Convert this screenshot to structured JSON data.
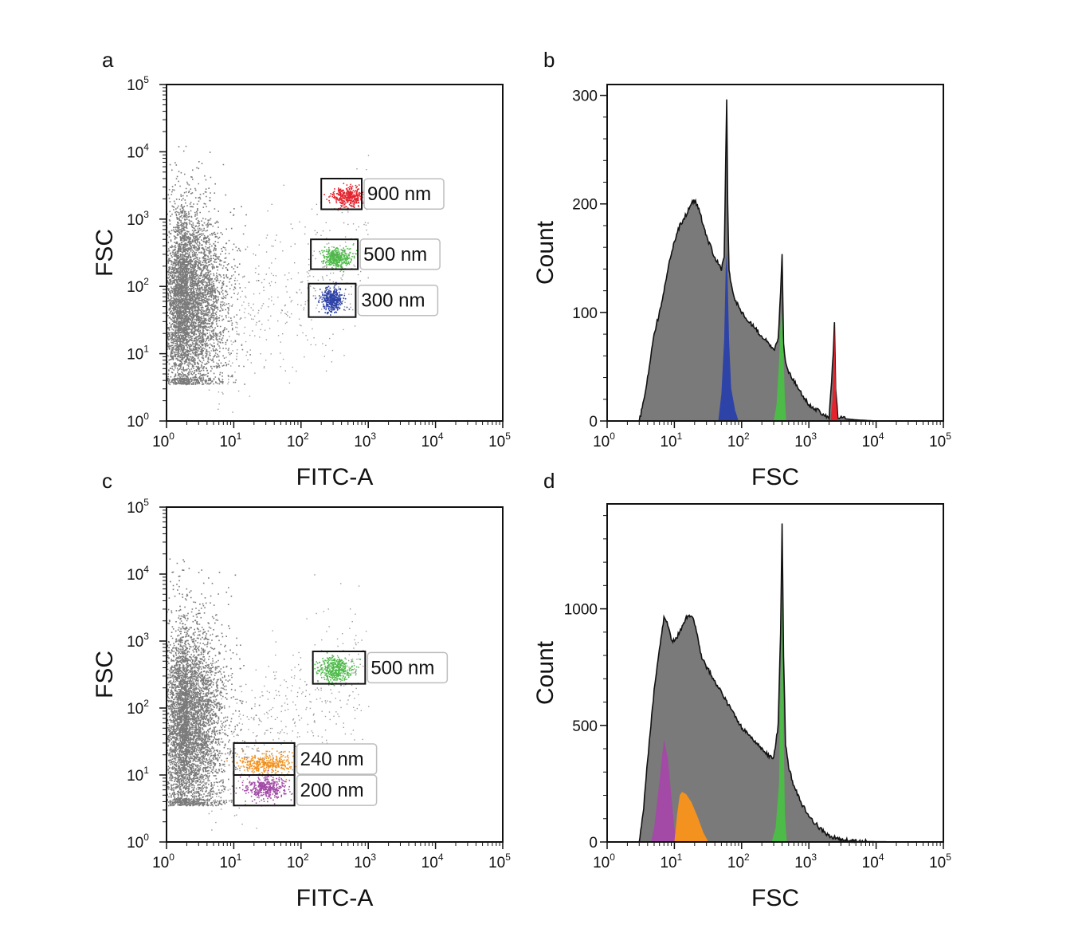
{
  "colors": {
    "background": "#ffffff",
    "bulk": "#7a7a7a",
    "axis": "#111111",
    "red": "#e3232e",
    "green": "#4dbb48",
    "blue": "#2e43a8",
    "orange": "#f3921f",
    "purple": "#a24aa6"
  },
  "chart_data": [
    {
      "panel": "a",
      "type": "scatter",
      "xlabel": "FITC-A",
      "ylabel": "FSC",
      "xscale": "log",
      "yscale": "log",
      "xlim": [
        1,
        100000
      ],
      "ylim": [
        1,
        100000
      ],
      "x_tick_labels": [
        {
          "base": "10",
          "exp": "0"
        },
        {
          "base": "10",
          "exp": "1"
        },
        {
          "base": "10",
          "exp": "2"
        },
        {
          "base": "10",
          "exp": "3"
        },
        {
          "base": "10",
          "exp": "4"
        },
        {
          "base": "10",
          "exp": "5"
        }
      ],
      "y_tick_labels": [
        {
          "base": "10",
          "exp": "0"
        },
        {
          "base": "10",
          "exp": "1"
        },
        {
          "base": "10",
          "exp": "2"
        },
        {
          "base": "10",
          "exp": "3"
        },
        {
          "base": "10",
          "exp": "4"
        },
        {
          "base": "10",
          "exp": "5"
        }
      ],
      "populations": [
        {
          "color": "bulk",
          "x_center": 2,
          "y_center": 60,
          "log_spread_x": 0.28,
          "log_spread_y": 0.7
        },
        {
          "color": "red",
          "x_center": 500,
          "y_center": 2200,
          "log_spread_x": 0.12,
          "log_spread_y": 0.07
        },
        {
          "color": "green",
          "x_center": 340,
          "y_center": 270,
          "log_spread_x": 0.1,
          "log_spread_y": 0.07
        },
        {
          "color": "blue",
          "x_center": 280,
          "y_center": 65,
          "log_spread_x": 0.08,
          "log_spread_y": 0.09
        }
      ],
      "gates": [
        {
          "label": "900 nm",
          "x_range": [
            200,
            800
          ],
          "y_range": [
            1400,
            4000
          ]
        },
        {
          "label": "500 nm",
          "x_range": [
            140,
            700
          ],
          "y_range": [
            180,
            500
          ]
        },
        {
          "label": "300 nm",
          "x_range": [
            130,
            650
          ],
          "y_range": [
            35,
            110
          ]
        }
      ]
    },
    {
      "panel": "b",
      "type": "area",
      "xlabel": "FSC",
      "ylabel": "Count",
      "xscale": "log",
      "xlim": [
        1,
        100000
      ],
      "ylim": [
        0,
        310
      ],
      "x_tick_labels": [
        {
          "base": "10",
          "exp": "0"
        },
        {
          "base": "10",
          "exp": "1"
        },
        {
          "base": "10",
          "exp": "2"
        },
        {
          "base": "10",
          "exp": "3"
        },
        {
          "base": "10",
          "exp": "4"
        },
        {
          "base": "10",
          "exp": "5"
        }
      ],
      "y_ticks": [
        0,
        100,
        200,
        300
      ],
      "total_histogram": {
        "x": [
          3,
          3.5,
          4,
          5,
          6,
          7,
          8,
          10,
          12,
          15,
          18,
          20,
          22,
          25,
          30,
          35,
          40,
          45,
          50,
          55,
          58,
          60,
          62,
          65,
          70,
          80,
          100,
          130,
          160,
          200,
          250,
          300,
          350,
          380,
          400,
          420,
          450,
          500,
          700,
          1000,
          1500,
          2000,
          2300,
          2400,
          2500,
          2700,
          3500,
          5000,
          10000,
          100000
        ],
        "y": [
          0,
          18,
          40,
          80,
          100,
          120,
          140,
          165,
          180,
          190,
          202,
          203,
          198,
          188,
          170,
          160,
          150,
          145,
          140,
          150,
          240,
          295,
          200,
          140,
          125,
          112,
          100,
          92,
          85,
          78,
          72,
          65,
          75,
          120,
          152,
          70,
          55,
          45,
          30,
          15,
          8,
          3,
          60,
          90,
          30,
          3,
          2,
          1,
          0,
          0
        ]
      },
      "peaks": [
        {
          "color": "blue",
          "x": [
            45,
            50,
            55,
            58,
            60,
            62,
            65,
            70,
            80,
            90
          ],
          "y": [
            0,
            25,
            75,
            140,
            155,
            130,
            75,
            30,
            10,
            0
          ]
        },
        {
          "color": "green",
          "x": [
            300,
            330,
            360,
            380,
            400,
            420,
            440,
            460
          ],
          "y": [
            0,
            15,
            55,
            90,
            100,
            60,
            20,
            0
          ]
        },
        {
          "color": "red",
          "x": [
            2100,
            2250,
            2350,
            2400,
            2450,
            2550,
            2700
          ],
          "y": [
            0,
            20,
            60,
            88,
            60,
            20,
            0
          ]
        }
      ]
    },
    {
      "panel": "c",
      "type": "scatter",
      "xlabel": "FITC-A",
      "ylabel": "FSC",
      "xscale": "log",
      "yscale": "log",
      "xlim": [
        1,
        100000
      ],
      "ylim": [
        1,
        100000
      ],
      "x_tick_labels": [
        {
          "base": "10",
          "exp": "0"
        },
        {
          "base": "10",
          "exp": "1"
        },
        {
          "base": "10",
          "exp": "2"
        },
        {
          "base": "10",
          "exp": "3"
        },
        {
          "base": "10",
          "exp": "4"
        },
        {
          "base": "10",
          "exp": "5"
        }
      ],
      "y_tick_labels": [
        {
          "base": "10",
          "exp": "0"
        },
        {
          "base": "10",
          "exp": "1"
        },
        {
          "base": "10",
          "exp": "2"
        },
        {
          "base": "10",
          "exp": "3"
        },
        {
          "base": "10",
          "exp": "4"
        },
        {
          "base": "10",
          "exp": "5"
        }
      ],
      "populations": [
        {
          "color": "bulk",
          "x_center": 2,
          "y_center": 60,
          "log_spread_x": 0.28,
          "log_spread_y": 0.75
        },
        {
          "color": "green",
          "x_center": 320,
          "y_center": 380,
          "log_spread_x": 0.12,
          "log_spread_y": 0.09
        },
        {
          "color": "orange",
          "x_center": 30,
          "y_center": 15,
          "log_spread_x": 0.22,
          "log_spread_y": 0.08
        },
        {
          "color": "purple",
          "x_center": 30,
          "y_center": 6.5,
          "log_spread_x": 0.15,
          "log_spread_y": 0.08
        }
      ],
      "gates": [
        {
          "label": "500 nm",
          "x_range": [
            150,
            900
          ],
          "y_range": [
            230,
            700
          ]
        },
        {
          "label": "240 nm",
          "x_range": [
            10,
            80
          ],
          "y_range": [
            10,
            30
          ]
        },
        {
          "label": "200 nm",
          "x_range": [
            10,
            80
          ],
          "y_range": [
            3.5,
            10
          ]
        }
      ]
    },
    {
      "panel": "d",
      "type": "area",
      "xlabel": "FSC",
      "ylabel": "Count",
      "xscale": "log",
      "xlim": [
        1,
        100000
      ],
      "ylim": [
        0,
        1450
      ],
      "x_tick_labels": [
        {
          "base": "10",
          "exp": "0"
        },
        {
          "base": "10",
          "exp": "1"
        },
        {
          "base": "10",
          "exp": "2"
        },
        {
          "base": "10",
          "exp": "3"
        },
        {
          "base": "10",
          "exp": "4"
        },
        {
          "base": "10",
          "exp": "5"
        }
      ],
      "y_ticks": [
        0,
        500,
        1000
      ],
      "total_histogram": {
        "x": [
          3,
          3.5,
          4,
          5,
          6,
          7,
          8,
          9,
          10,
          12,
          15,
          18,
          20,
          22,
          25,
          30,
          35,
          40,
          50,
          60,
          80,
          100,
          150,
          200,
          250,
          300,
          350,
          380,
          400,
          420,
          450,
          500,
          600,
          800,
          1000,
          1500,
          2000,
          3000,
          5000,
          10000,
          100000
        ],
        "y": [
          0,
          150,
          350,
          650,
          830,
          960,
          930,
          870,
          860,
          900,
          960,
          975,
          940,
          880,
          800,
          750,
          720,
          690,
          640,
          600,
          540,
          490,
          440,
          400,
          370,
          360,
          500,
          900,
          1370,
          800,
          420,
          320,
          240,
          160,
          110,
          55,
          25,
          10,
          3,
          1,
          0
        ]
      },
      "peaks": [
        {
          "color": "purple",
          "x": [
            4.5,
            5,
            6,
            7,
            8,
            9,
            10,
            11
          ],
          "y": [
            0,
            60,
            260,
            440,
            360,
            200,
            60,
            0
          ]
        },
        {
          "color": "orange",
          "x": [
            10,
            11,
            12,
            13,
            15,
            18,
            22,
            27,
            32
          ],
          "y": [
            0,
            120,
            200,
            215,
            205,
            170,
            110,
            40,
            0
          ]
        },
        {
          "color": "green",
          "x": [
            280,
            320,
            360,
            380,
            400,
            420,
            440,
            470
          ],
          "y": [
            0,
            60,
            250,
            700,
            1050,
            500,
            120,
            0
          ]
        }
      ]
    }
  ]
}
